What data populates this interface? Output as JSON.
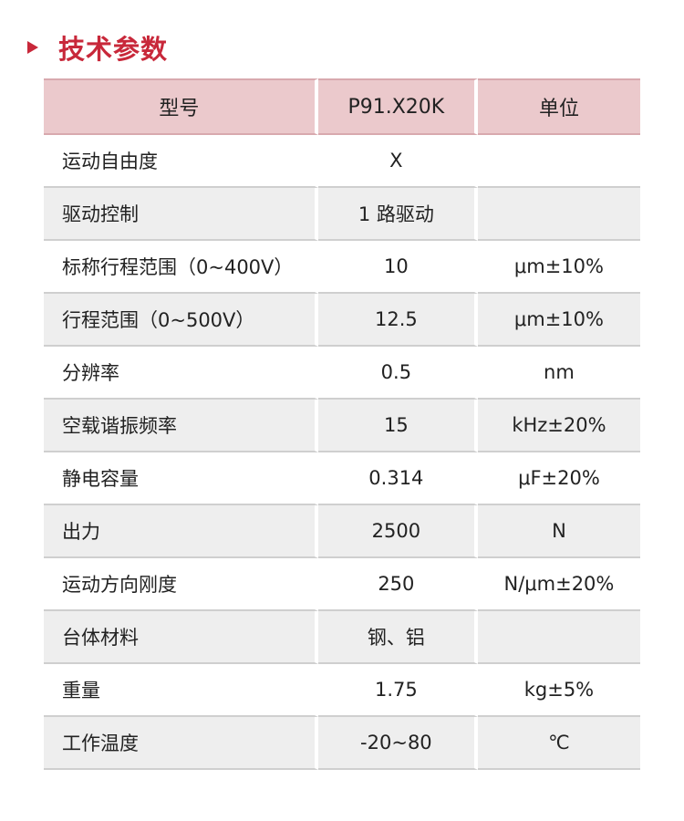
{
  "section": {
    "title": "技术参数",
    "icon": "triangle-right-icon",
    "accent_color": "#c8283a"
  },
  "table": {
    "header_color": "#ebc9cc",
    "stripe_color": "#eeeeee",
    "columns": [
      "型号",
      "P91.X20K",
      "单位"
    ],
    "rows": [
      {
        "name": "运动自由度",
        "value": "X",
        "unit": ""
      },
      {
        "name": "驱动控制",
        "value": "1 路驱动",
        "unit": ""
      },
      {
        "name": "标称行程范围（0~400V）",
        "value": "10",
        "unit": "μm±10%"
      },
      {
        "name": "行程范围（0~500V）",
        "value": "12.5",
        "unit": "μm±10%"
      },
      {
        "name": "分辨率",
        "value": "0.5",
        "unit": "nm"
      },
      {
        "name": "空载谐振频率",
        "value": "15",
        "unit": "kHz±20%"
      },
      {
        "name": "静电容量",
        "value": "0.314",
        "unit": "μF±20%"
      },
      {
        "name": "出力",
        "value": "2500",
        "unit": "N"
      },
      {
        "name": "运动方向刚度",
        "value": "250",
        "unit": "N/μm±20%"
      },
      {
        "name": "台体材料",
        "value": "钢、铝",
        "unit": ""
      },
      {
        "name": "重量",
        "value": "1.75",
        "unit": "kg±5%"
      },
      {
        "name": "工作温度",
        "value": "-20~80",
        "unit": "℃"
      }
    ]
  }
}
